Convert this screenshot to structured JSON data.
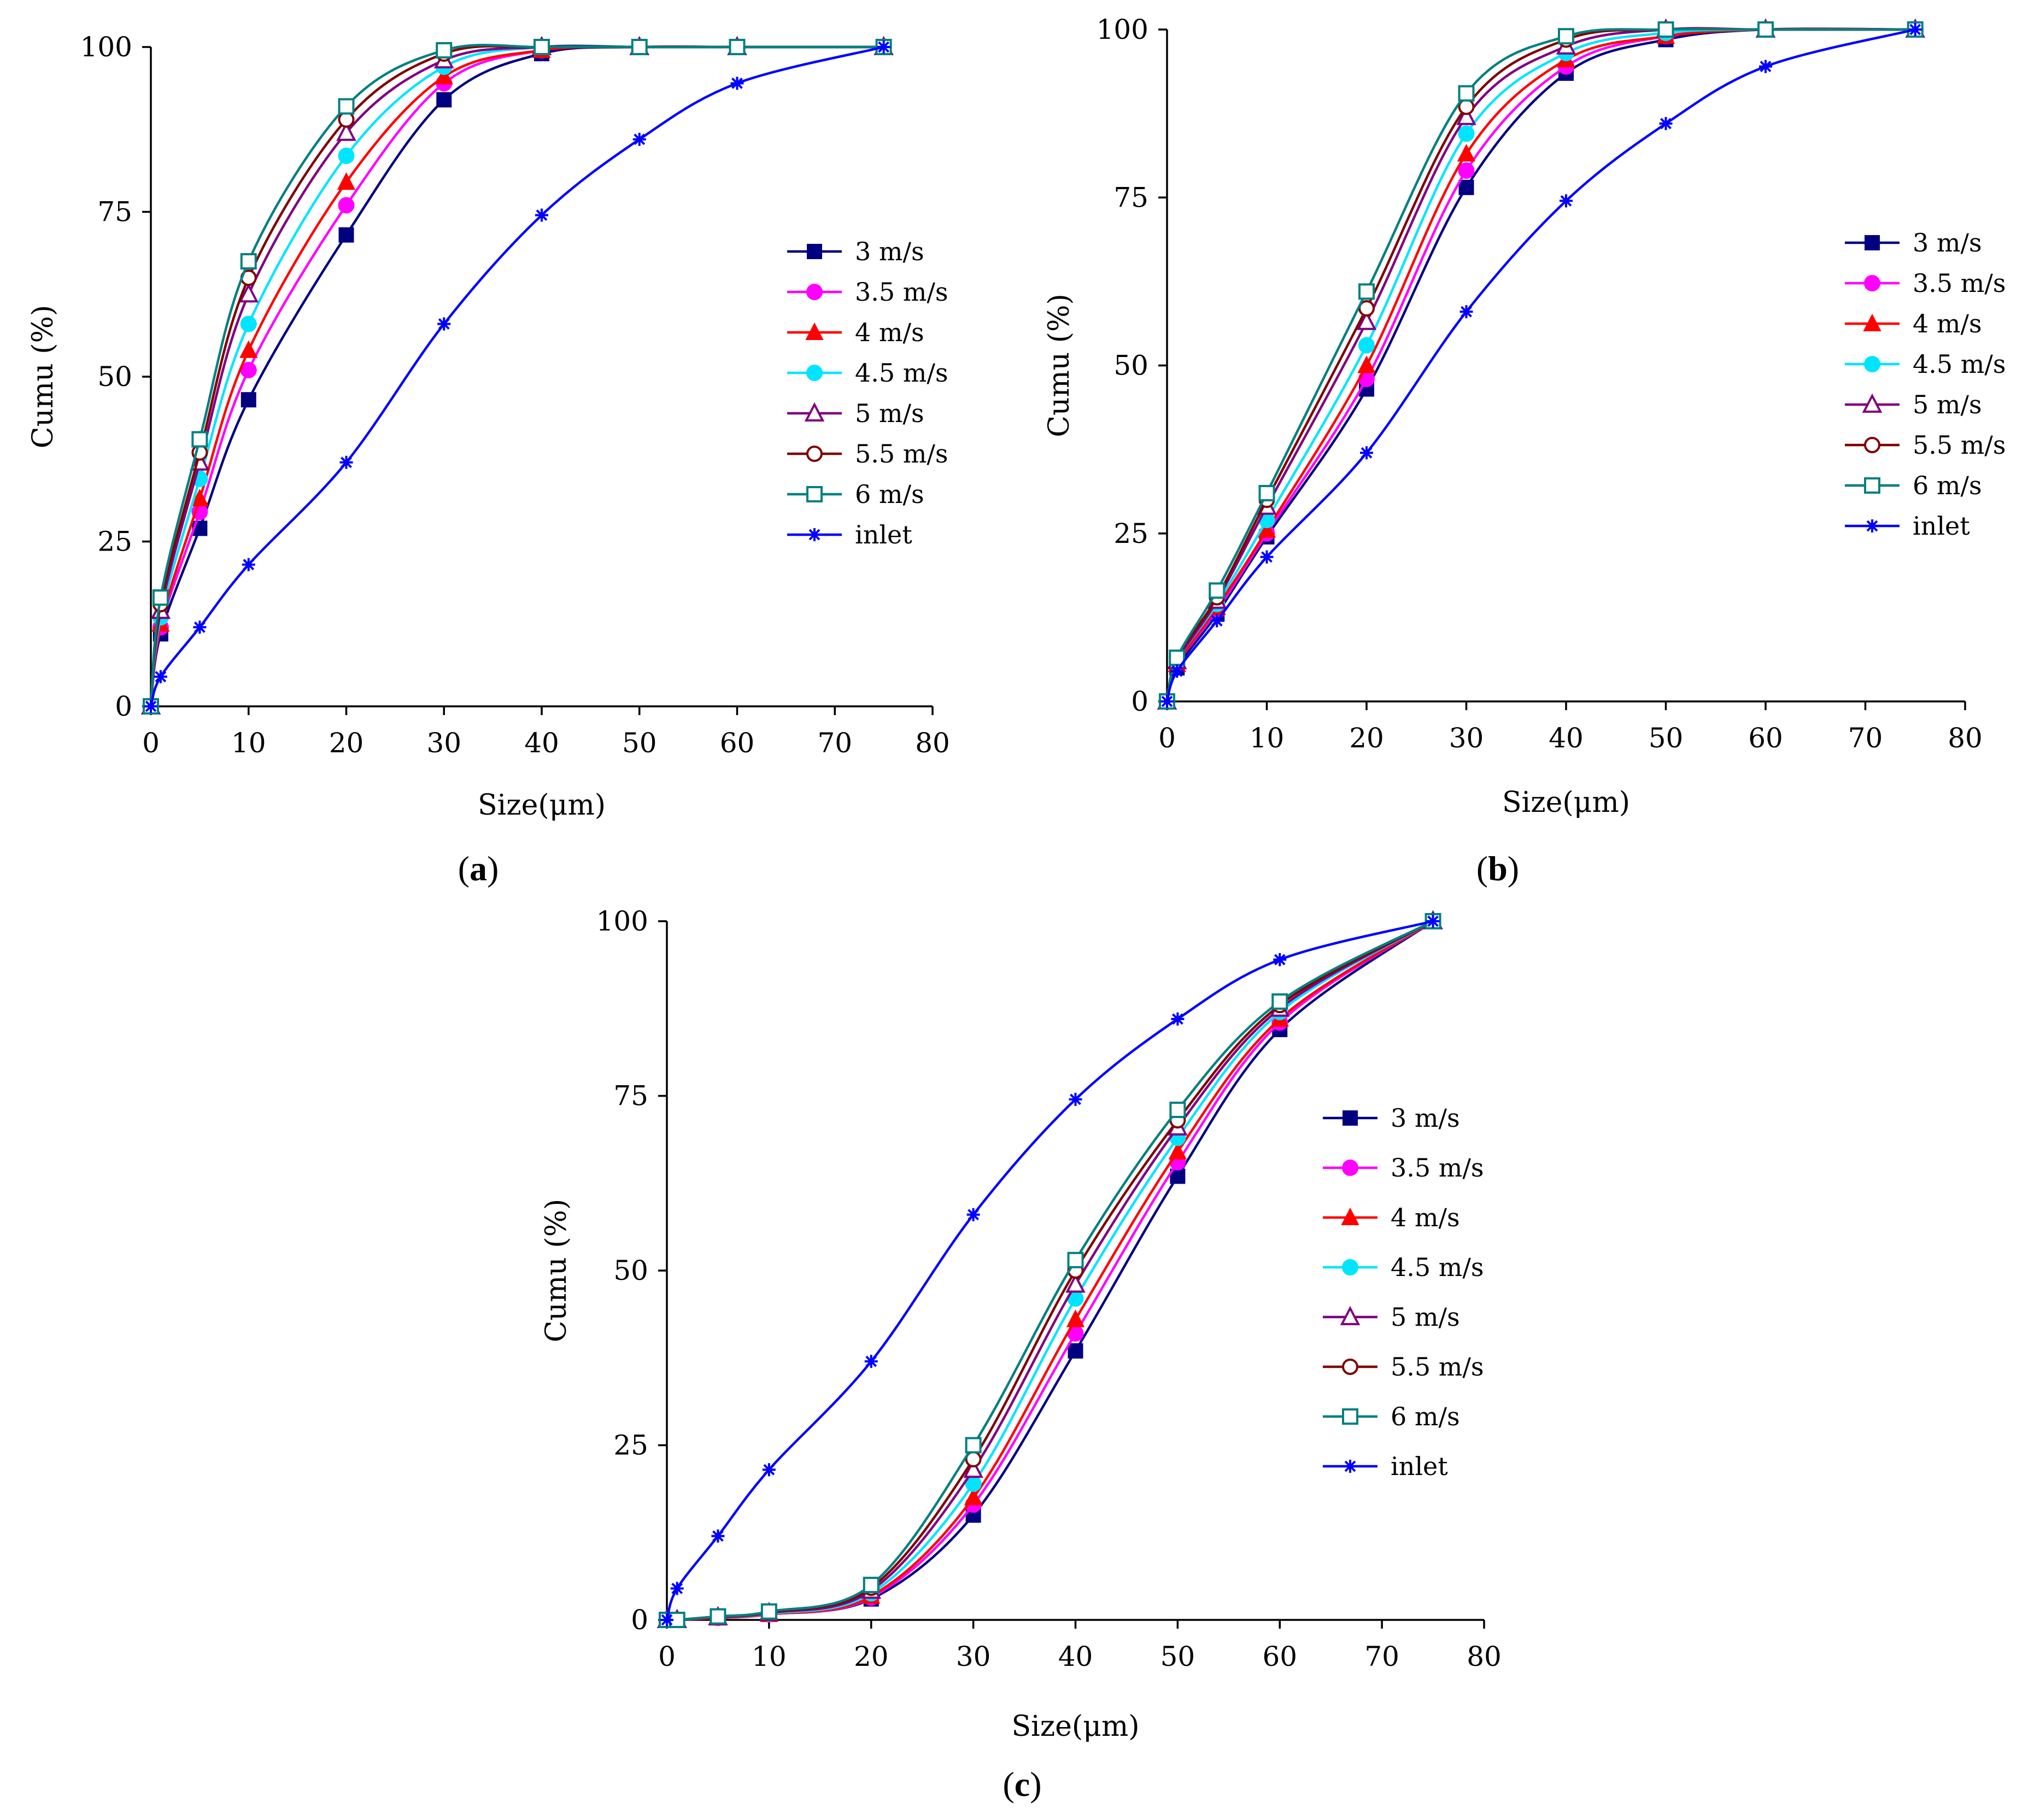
{
  "chart_data": [
    {
      "panel_label": "(a)",
      "panel_letter": "a",
      "type": "line",
      "xlabel": "Size(μm)",
      "ylabel": "Cumu (%)",
      "xlim": [
        0,
        80
      ],
      "ylim": [
        0,
        100
      ],
      "xticks": [
        "0",
        "10",
        "20",
        "30",
        "40",
        "50",
        "60",
        "70",
        "80"
      ],
      "yticks": [
        "0",
        "25",
        "50",
        "75",
        "100"
      ],
      "legend_position": "center-right",
      "series": [
        {
          "name": "3 m/s",
          "color": "#000080",
          "marker": "filled-square",
          "x": [
            0,
            1,
            5,
            10,
            20,
            30,
            40,
            50,
            60,
            75
          ],
          "y": [
            0,
            11,
            27,
            46.5,
            71.5,
            92,
            99,
            100,
            100,
            100
          ]
        },
        {
          "name": "3.5 m/s",
          "color": "#ff00ff",
          "marker": "filled-circle",
          "x": [
            0,
            1,
            5,
            10,
            20,
            30,
            40,
            50,
            60,
            75
          ],
          "y": [
            0,
            12,
            29.5,
            51,
            76,
            94.5,
            99.5,
            100,
            100,
            100
          ]
        },
        {
          "name": "4 m/s",
          "color": "#ff0000",
          "marker": "filled-triangle",
          "x": [
            0,
            1,
            5,
            10,
            20,
            30,
            40,
            50,
            60,
            75
          ],
          "y": [
            0,
            12.5,
            31.5,
            54,
            79.5,
            95.5,
            99.5,
            100,
            100,
            100
          ]
        },
        {
          "name": "4.5 m/s",
          "color": "#00e5ff",
          "marker": "filled-circle",
          "x": [
            0,
            1,
            5,
            10,
            20,
            30,
            40,
            50,
            60,
            75
          ],
          "y": [
            0,
            13.5,
            34.5,
            58,
            83.5,
            97,
            100,
            100,
            100,
            100
          ]
        },
        {
          "name": "5 m/s",
          "color": "#800080",
          "marker": "open-triangle",
          "x": [
            0,
            1,
            5,
            10,
            20,
            30,
            40,
            50,
            60,
            75
          ],
          "y": [
            0,
            14.5,
            37,
            62.5,
            87,
            98,
            100,
            100,
            100,
            100
          ]
        },
        {
          "name": "5.5 m/s",
          "color": "#800000",
          "marker": "open-circle",
          "x": [
            0,
            1,
            5,
            10,
            20,
            30,
            40,
            50,
            60,
            75
          ],
          "y": [
            0,
            15.5,
            38.5,
            65,
            89,
            99,
            100,
            100,
            100,
            100
          ]
        },
        {
          "name": "6 m/s",
          "color": "#008080",
          "marker": "open-square",
          "x": [
            0,
            1,
            5,
            10,
            20,
            30,
            40,
            50,
            60,
            75
          ],
          "y": [
            0,
            16.5,
            40.5,
            67.5,
            91,
            99.5,
            100,
            100,
            100,
            100
          ]
        },
        {
          "name": "inlet",
          "color": "#0000ff",
          "marker": "star",
          "x": [
            0,
            1,
            5,
            10,
            20,
            30,
            40,
            50,
            60,
            75
          ],
          "y": [
            0,
            4.5,
            12,
            21.5,
            37,
            58,
            74.5,
            86,
            94.5,
            100
          ]
        }
      ]
    },
    {
      "panel_label": "(b)",
      "panel_letter": "b",
      "type": "line",
      "xlabel": "Size(μm)",
      "ylabel": "Cumu (%)",
      "xlim": [
        0,
        80
      ],
      "ylim": [
        0,
        100
      ],
      "xticks": [
        "0",
        "10",
        "20",
        "30",
        "40",
        "50",
        "60",
        "70",
        "80"
      ],
      "yticks": [
        "0",
        "25",
        "50",
        "75",
        "100"
      ],
      "legend_position": "center-right",
      "series": [
        {
          "name": "3 m/s",
          "color": "#000080",
          "marker": "filled-square",
          "x": [
            0,
            1,
            5,
            10,
            20,
            30,
            40,
            50,
            60,
            75
          ],
          "y": [
            0,
            5,
            13,
            24.5,
            46.5,
            76.5,
            93.5,
            98.5,
            100,
            100
          ]
        },
        {
          "name": "3.5 m/s",
          "color": "#ff00ff",
          "marker": "filled-circle",
          "x": [
            0,
            1,
            5,
            10,
            20,
            30,
            40,
            50,
            60,
            75
          ],
          "y": [
            0,
            5.5,
            13.5,
            25,
            48,
            79,
            94.5,
            99,
            100,
            100
          ]
        },
        {
          "name": "4 m/s",
          "color": "#ff0000",
          "marker": "filled-triangle",
          "x": [
            0,
            1,
            5,
            10,
            20,
            30,
            40,
            50,
            60,
            75
          ],
          "y": [
            0,
            5.5,
            14,
            25.5,
            50,
            81.5,
            95.5,
            99,
            100,
            100
          ]
        },
        {
          "name": "4.5 m/s",
          "color": "#00e5ff",
          "marker": "filled-circle",
          "x": [
            0,
            1,
            5,
            10,
            20,
            30,
            40,
            50,
            60,
            75
          ],
          "y": [
            0,
            6,
            14.5,
            27,
            53,
            84.5,
            96.5,
            99.5,
            100,
            100
          ]
        },
        {
          "name": "5 m/s",
          "color": "#800080",
          "marker": "open-triangle",
          "x": [
            0,
            1,
            5,
            10,
            20,
            30,
            40,
            50,
            60,
            75
          ],
          "y": [
            0,
            6,
            15,
            29,
            56.5,
            87,
            97.5,
            100,
            100,
            100
          ]
        },
        {
          "name": "5.5 m/s",
          "color": "#800000",
          "marker": "open-circle",
          "x": [
            0,
            1,
            5,
            10,
            20,
            30,
            40,
            50,
            60,
            75
          ],
          "y": [
            0,
            6.5,
            15.5,
            30,
            58.5,
            88.5,
            98.5,
            100,
            100,
            100
          ]
        },
        {
          "name": "6 m/s",
          "color": "#008080",
          "marker": "open-square",
          "x": [
            0,
            1,
            5,
            10,
            20,
            30,
            40,
            50,
            60,
            75
          ],
          "y": [
            0,
            6.5,
            16.5,
            31,
            61,
            90.5,
            99,
            100,
            100,
            100
          ]
        },
        {
          "name": "inlet",
          "color": "#0000ff",
          "marker": "star",
          "x": [
            0,
            1,
            5,
            10,
            20,
            30,
            40,
            50,
            60,
            75
          ],
          "y": [
            0,
            4.5,
            12,
            21.5,
            37,
            58,
            74.5,
            86,
            94.5,
            100
          ]
        }
      ]
    },
    {
      "panel_label": "(c)",
      "panel_letter": "c",
      "type": "line",
      "xlabel": "Size(μm)",
      "ylabel": "Cumu (%)",
      "xlim": [
        0,
        80
      ],
      "ylim": [
        0,
        100
      ],
      "xticks": [
        "0",
        "10",
        "20",
        "30",
        "40",
        "50",
        "60",
        "70",
        "80"
      ],
      "yticks": [
        "0",
        "25",
        "50",
        "75",
        "100"
      ],
      "legend_position": "center-right",
      "series": [
        {
          "name": "3 m/s",
          "color": "#000080",
          "marker": "filled-square",
          "x": [
            0,
            1,
            5,
            10,
            20,
            30,
            40,
            50,
            60,
            75
          ],
          "y": [
            0,
            0,
            0.3,
            0.8,
            3,
            15,
            38.5,
            63.5,
            84.5,
            100
          ]
        },
        {
          "name": "3.5 m/s",
          "color": "#ff00ff",
          "marker": "filled-circle",
          "x": [
            0,
            1,
            5,
            10,
            20,
            30,
            40,
            50,
            60,
            75
          ],
          "y": [
            0,
            0,
            0.3,
            0.8,
            3.2,
            16.5,
            41,
            65.5,
            85.5,
            100
          ]
        },
        {
          "name": "4 m/s",
          "color": "#ff0000",
          "marker": "filled-triangle",
          "x": [
            0,
            1,
            5,
            10,
            20,
            30,
            40,
            50,
            60,
            75
          ],
          "y": [
            0,
            0,
            0.3,
            0.8,
            3.4,
            17.5,
            43,
            67,
            86,
            100
          ]
        },
        {
          "name": "4.5 m/s",
          "color": "#00e5ff",
          "marker": "filled-circle",
          "x": [
            0,
            1,
            5,
            10,
            20,
            30,
            40,
            50,
            60,
            75
          ],
          "y": [
            0,
            0,
            0.4,
            0.9,
            3.8,
            19.5,
            46,
            69,
            87,
            100
          ]
        },
        {
          "name": "5 m/s",
          "color": "#800080",
          "marker": "open-triangle",
          "x": [
            0,
            1,
            5,
            10,
            20,
            30,
            40,
            50,
            60,
            75
          ],
          "y": [
            0,
            0,
            0.4,
            1,
            4.2,
            21.5,
            48,
            70.5,
            87.5,
            100
          ]
        },
        {
          "name": "5.5 m/s",
          "color": "#800000",
          "marker": "open-circle",
          "x": [
            0,
            1,
            5,
            10,
            20,
            30,
            40,
            50,
            60,
            75
          ],
          "y": [
            0,
            0,
            0.5,
            1.1,
            4.6,
            23,
            50,
            71.5,
            88,
            100
          ]
        },
        {
          "name": "6 m/s",
          "color": "#008080",
          "marker": "open-square",
          "x": [
            0,
            1,
            5,
            10,
            20,
            30,
            40,
            50,
            60,
            75
          ],
          "y": [
            0,
            0,
            0.5,
            1.2,
            5,
            25,
            51.5,
            73,
            88.5,
            100
          ]
        },
        {
          "name": "inlet",
          "color": "#0000ff",
          "marker": "star",
          "x": [
            0,
            1,
            5,
            10,
            20,
            30,
            40,
            50,
            60,
            75
          ],
          "y": [
            0,
            4.5,
            12,
            21.5,
            37,
            58,
            74.5,
            86,
            94.5,
            100
          ]
        }
      ]
    }
  ]
}
